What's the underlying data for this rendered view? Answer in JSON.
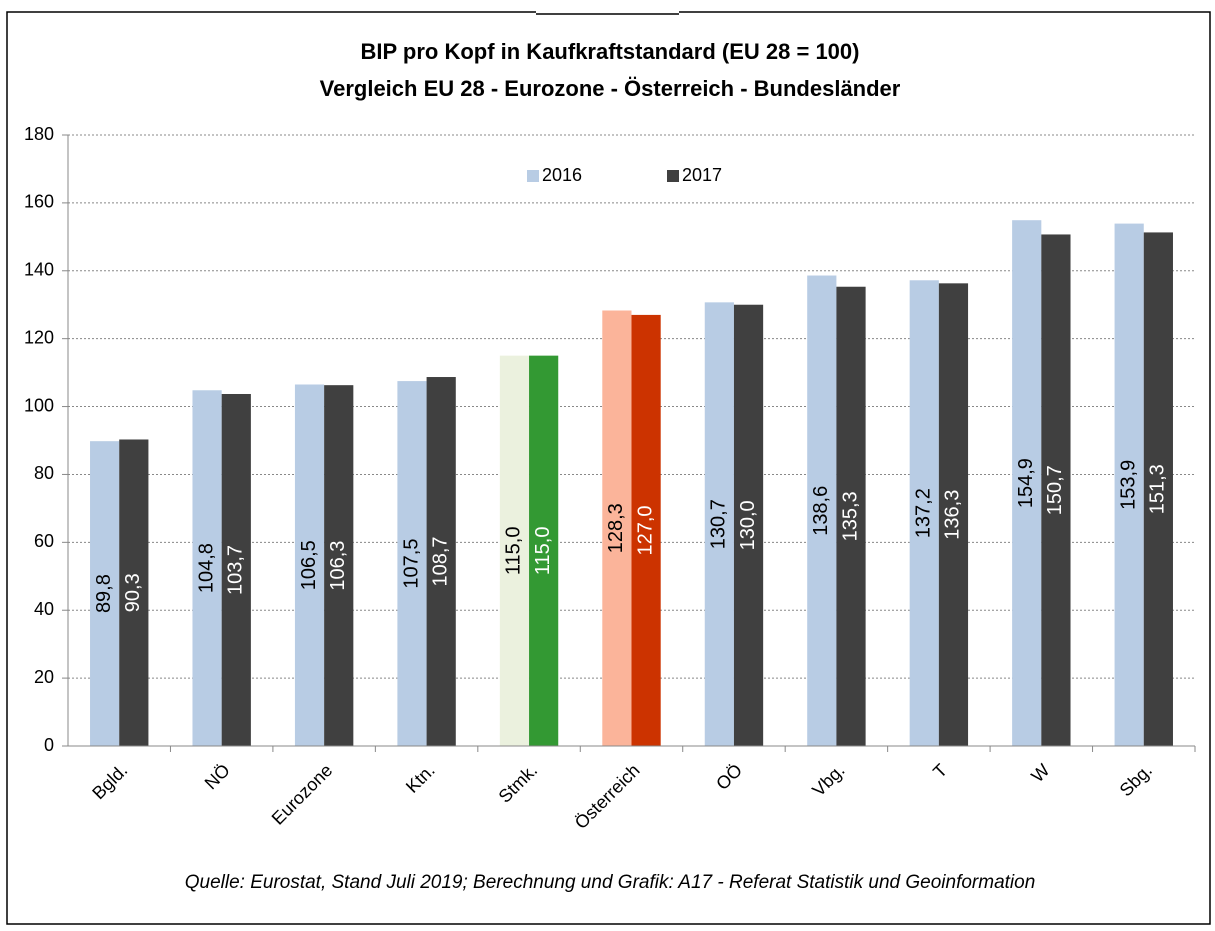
{
  "chart_data": {
    "type": "bar",
    "title": "BIP pro Kopf in Kaufkraftstandard (EU 28 = 100)",
    "subtitle": "Vergleich EU 28 - Eurozone - Österreich - Bundesländer",
    "source": "Quelle: Eurostat, Stand Juli 2019; Berechnung und Grafik: A17 - Referat Statistik und Geoinformation",
    "categories": [
      "Bgld.",
      "NÖ",
      "Eurozone",
      "Ktn.",
      "Stmk.",
      "Österreich",
      "OÖ",
      "Vbg.",
      "T",
      "W",
      "Sbg."
    ],
    "series": [
      {
        "name": "2016",
        "color": "#b8cce4",
        "colors": [
          "#b8cce4",
          "#b8cce4",
          "#b8cce4",
          "#b8cce4",
          "#ebf1de",
          "#fbb49a",
          "#b8cce4",
          "#b8cce4",
          "#b8cce4",
          "#b8cce4",
          "#b8cce4"
        ],
        "values": [
          89.8,
          104.8,
          106.5,
          107.5,
          115.0,
          128.3,
          130.7,
          138.6,
          137.2,
          154.9,
          153.9
        ],
        "value_labels": [
          "89,8",
          "104,8",
          "106,5",
          "107,5",
          "115,0",
          "128,3",
          "130,7",
          "138,6",
          "137,2",
          "154,9",
          "153,9"
        ]
      },
      {
        "name": "2017",
        "color": "#404040",
        "colors": [
          "#404040",
          "#404040",
          "#404040",
          "#404040",
          "#339933",
          "#cc3300",
          "#404040",
          "#404040",
          "#404040",
          "#404040",
          "#404040"
        ],
        "values": [
          90.3,
          103.7,
          106.3,
          108.7,
          115.0,
          127.0,
          130.0,
          135.3,
          136.3,
          150.7,
          151.3
        ],
        "value_labels": [
          "90,3",
          "103,7",
          "106,3",
          "108,7",
          "115,0",
          "127,0",
          "130,0",
          "135,3",
          "136,3",
          "150,7",
          "151,3"
        ]
      }
    ],
    "ylim": [
      0,
      180
    ],
    "yticks": [
      0,
      20,
      40,
      60,
      80,
      100,
      120,
      140,
      160,
      180
    ],
    "grid": true,
    "legend": "top"
  }
}
